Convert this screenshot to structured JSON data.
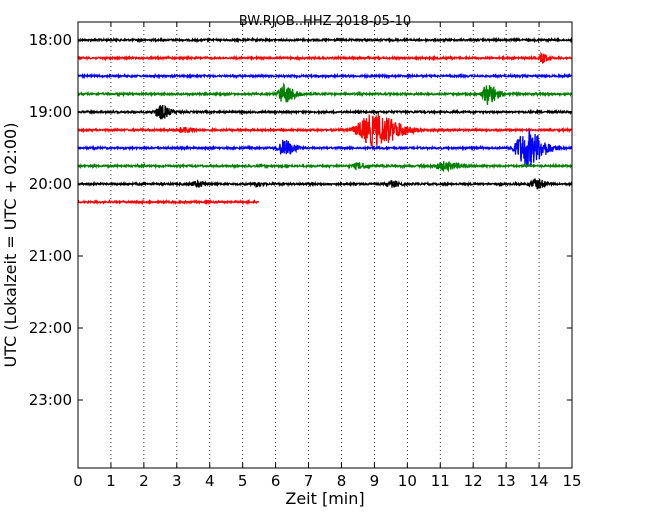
{
  "chart_data": {
    "type": "line",
    "title": "BW.RJOB..HHZ 2018-05-10",
    "xlabel": "Zeit  [min]",
    "ylabel": "UTC (Lokalzeit = UTC + 02:00)",
    "xlim": [
      0,
      15
    ],
    "x_ticks": [
      "0",
      "1",
      "2",
      "3",
      "4",
      "5",
      "6",
      "7",
      "8",
      "9",
      "10",
      "11",
      "12",
      "13",
      "14",
      "15"
    ],
    "y_ticks": [
      "18:00",
      "19:00",
      "20:00",
      "21:00",
      "22:00",
      "23:00"
    ],
    "grid": "vertical dotted",
    "trace_colors": [
      "#000000",
      "#ff0000",
      "#0000ff",
      "#008000"
    ],
    "series": [
      {
        "offset_min": 0,
        "color": "#000000",
        "x_end": 15,
        "bursts": []
      },
      {
        "offset_min": 15,
        "color": "#ff0000",
        "x_end": 15,
        "bursts": [
          {
            "t": 14.1,
            "amp": 5,
            "dur": 0.15
          }
        ]
      },
      {
        "offset_min": 30,
        "color": "#0000ff",
        "x_end": 15,
        "bursts": []
      },
      {
        "offset_min": 45,
        "color": "#008000",
        "x_end": 15,
        "bursts": [
          {
            "t": 6.25,
            "amp": 9,
            "dur": 0.35
          },
          {
            "t": 12.45,
            "amp": 11,
            "dur": 0.3
          }
        ]
      },
      {
        "offset_min": 60,
        "color": "#000000",
        "x_end": 15,
        "bursts": [
          {
            "t": 2.5,
            "amp": 7,
            "dur": 0.3
          }
        ]
      },
      {
        "offset_min": 75,
        "color": "#ff0000",
        "x_end": 15,
        "bursts": [
          {
            "t": 3.2,
            "amp": 3,
            "dur": 0.3
          },
          {
            "t": 8.95,
            "amp": 16,
            "dur": 0.9
          }
        ]
      },
      {
        "offset_min": 90,
        "color": "#0000ff",
        "x_end": 15,
        "bursts": [
          {
            "t": 6.25,
            "amp": 8,
            "dur": 0.35
          },
          {
            "t": 13.6,
            "amp": 18,
            "dur": 0.6
          }
        ]
      },
      {
        "offset_min": 105,
        "color": "#008000",
        "x_end": 15,
        "bursts": [
          {
            "t": 8.5,
            "amp": 3,
            "dur": 0.3
          },
          {
            "t": 11.1,
            "amp": 4,
            "dur": 0.5
          }
        ]
      },
      {
        "offset_min": 120,
        "color": "#000000",
        "x_end": 15,
        "bursts": [
          {
            "t": 3.6,
            "amp": 3,
            "dur": 0.3
          },
          {
            "t": 5.4,
            "amp": 2,
            "dur": 0.2
          },
          {
            "t": 9.5,
            "amp": 3,
            "dur": 0.3
          },
          {
            "t": 13.9,
            "amp": 5,
            "dur": 0.3
          }
        ]
      },
      {
        "offset_min": 135,
        "color": "#ff0000",
        "x_end": 5.5,
        "bursts": []
      }
    ]
  }
}
